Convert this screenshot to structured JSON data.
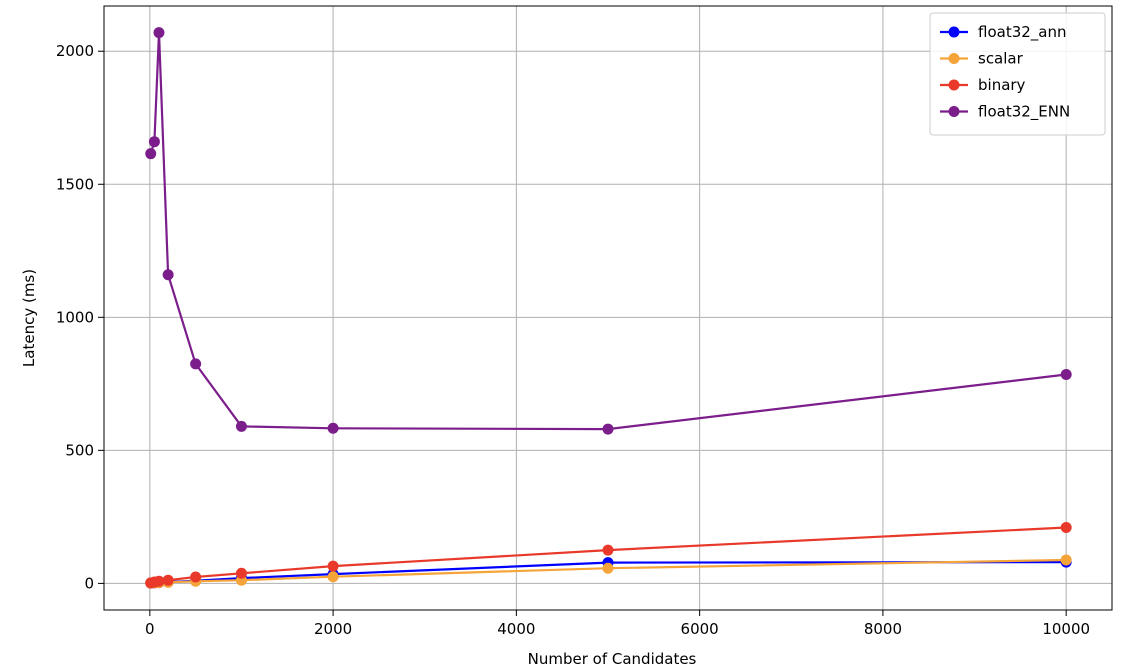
{
  "chart_data": {
    "type": "line",
    "title": "",
    "xlabel": "Number of Candidates",
    "ylabel": "Latency (ms)",
    "xlim": [
      -500,
      10500
    ],
    "ylim": [
      -100,
      2170
    ],
    "xticks": [
      0,
      2000,
      4000,
      6000,
      8000,
      10000
    ],
    "yticks": [
      0,
      500,
      1000,
      1500,
      2000
    ],
    "grid": true,
    "legend_position": "top-right",
    "x": [
      10,
      50,
      100,
      200,
      500,
      1000,
      2000,
      5000,
      10000
    ],
    "series": [
      {
        "name": "float32_ann",
        "color": "#0000ff",
        "values": [
          1,
          2,
          3,
          5,
          10,
          20,
          35,
          78,
          80
        ]
      },
      {
        "name": "scalar",
        "color": "#f5a43a",
        "values": [
          1,
          2,
          3,
          4,
          8,
          12,
          25,
          57,
          88
        ]
      },
      {
        "name": "binary",
        "color": "#e8392a",
        "values": [
          2,
          5,
          8,
          12,
          24,
          38,
          65,
          125,
          210
        ]
      },
      {
        "name": "float32_ENN",
        "color": "#7b1d8a",
        "values": [
          1615,
          1660,
          2070,
          1160,
          825,
          590,
          583,
          580,
          785
        ]
      }
    ]
  }
}
